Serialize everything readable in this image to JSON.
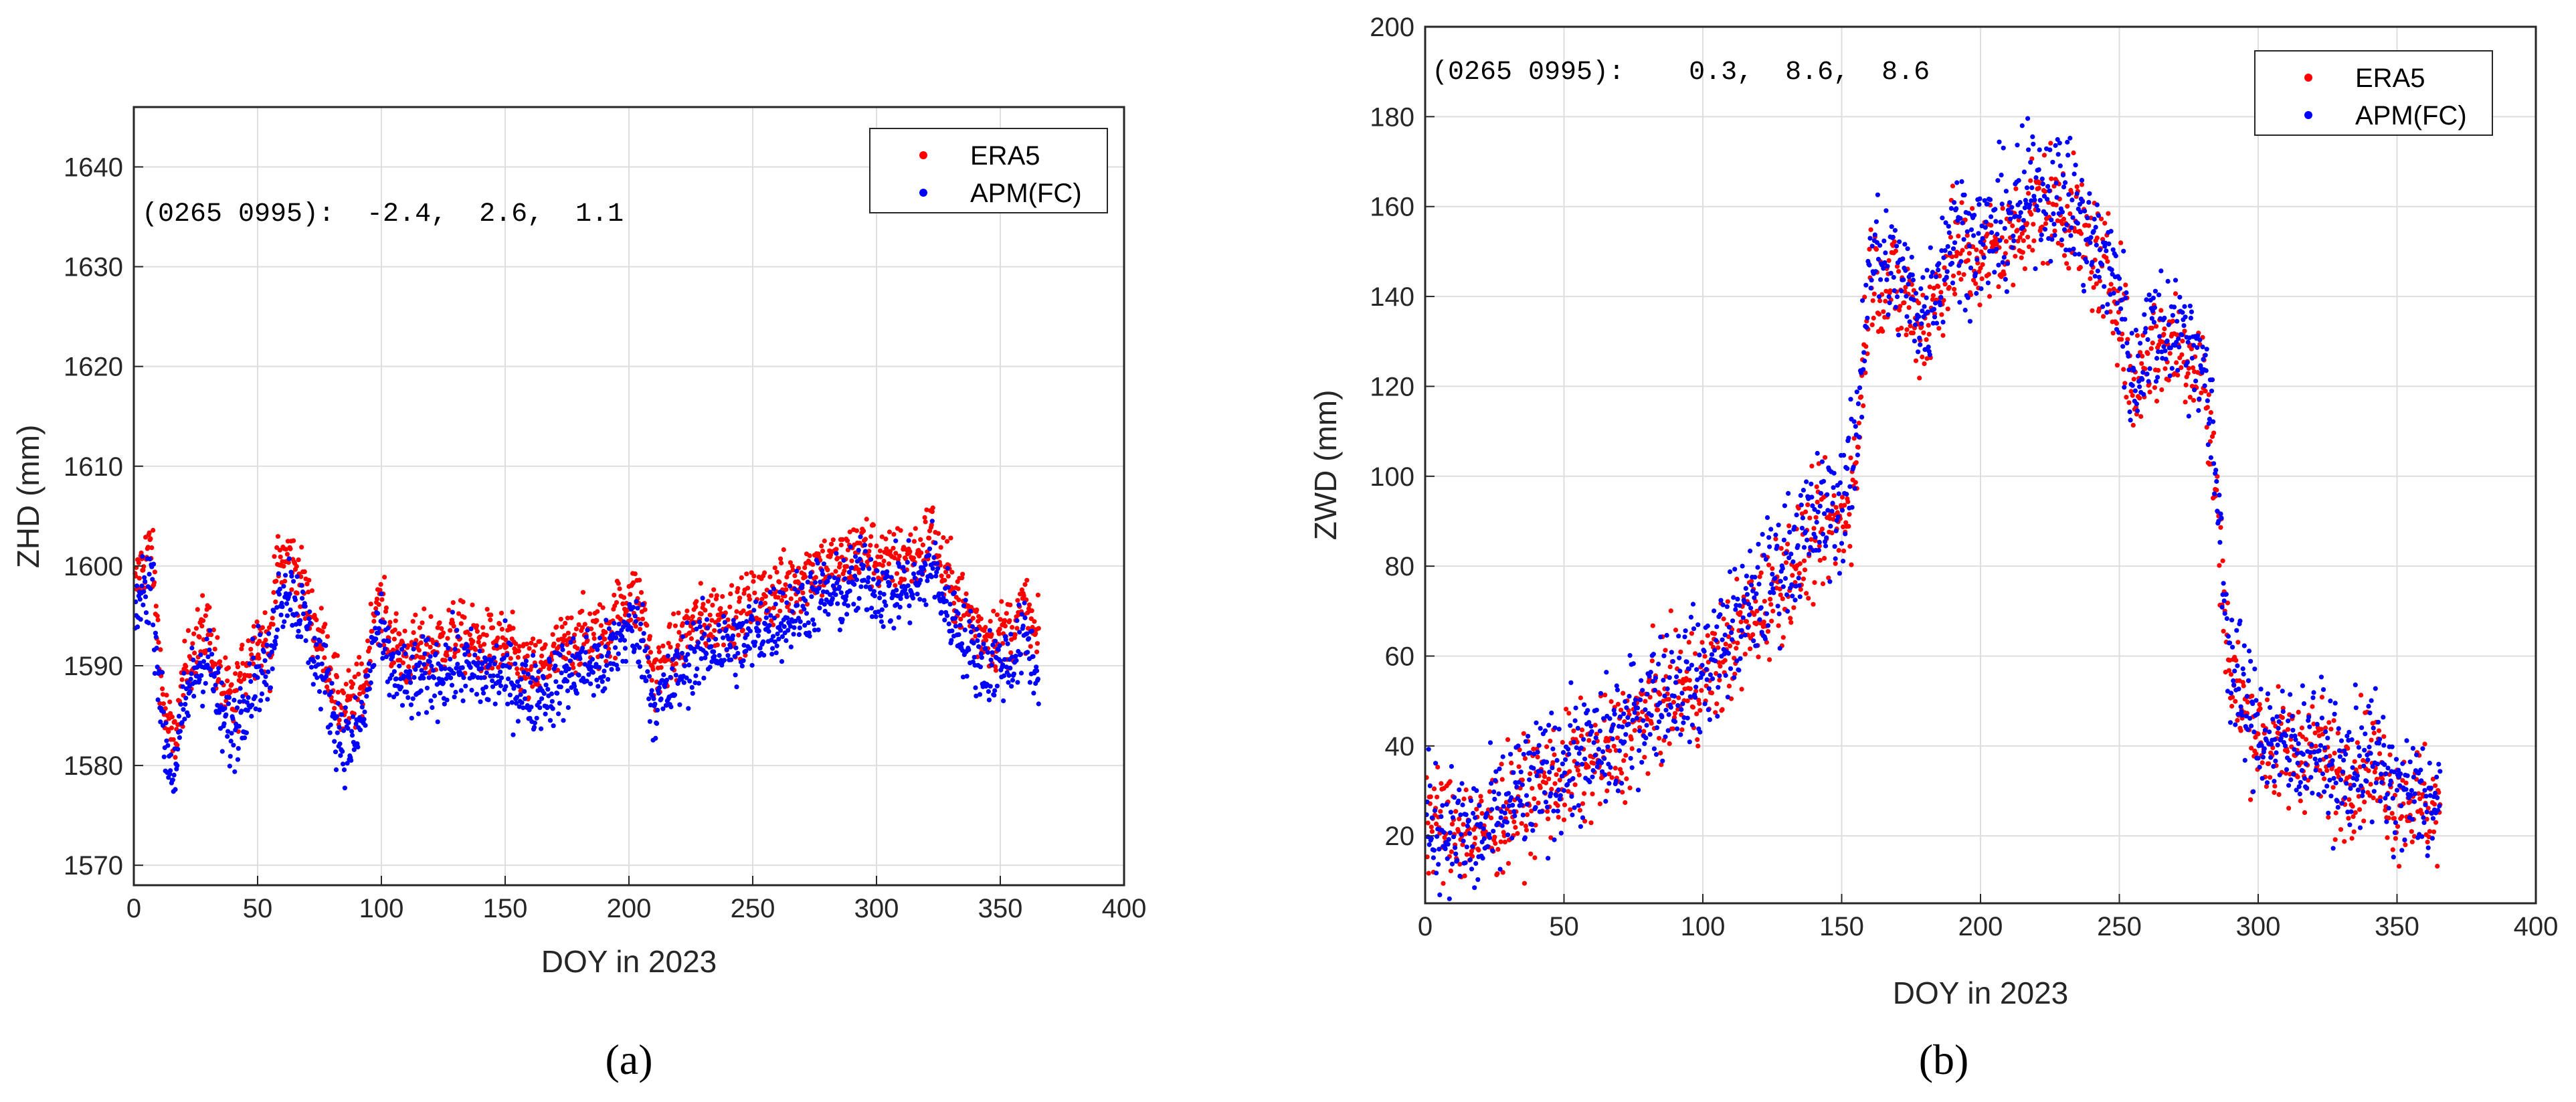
{
  "colors": {
    "era5": "#ff0000",
    "apm": "#0000ff",
    "grid": "#dedede",
    "axis": "#262626"
  },
  "chart_data": [
    {
      "id": "a",
      "type": "scatter",
      "caption": "(a)",
      "title": "",
      "xlabel": "DOY in 2023",
      "ylabel": "ZHD (mm)",
      "xlim": [
        0,
        400
      ],
      "ylim": [
        1568,
        1646
      ],
      "xticks": [
        0,
        50,
        100,
        150,
        200,
        250,
        300,
        350,
        400
      ],
      "yticks": [
        1570,
        1580,
        1590,
        1600,
        1610,
        1620,
        1630,
        1640
      ],
      "grid": true,
      "legend": {
        "position": "top-right",
        "entries": [
          "ERA5",
          "APM(FC)"
        ]
      },
      "annotation": "(0265 0995):  -2.4,  2.6,  1.1",
      "series": [
        {
          "name": "ERA5",
          "color": "#ff0000",
          "noise": 2.5,
          "trend": [
            [
              0,
              1597
            ],
            [
              3,
              1600
            ],
            [
              7,
              1602
            ],
            [
              12,
              1586
            ],
            [
              16,
              1582
            ],
            [
              20,
              1588
            ],
            [
              24,
              1592
            ],
            [
              30,
              1594
            ],
            [
              35,
              1588
            ],
            [
              40,
              1586
            ],
            [
              45,
              1590
            ],
            [
              50,
              1593
            ],
            [
              55,
              1592
            ],
            [
              58,
              1600
            ],
            [
              63,
              1601
            ],
            [
              68,
              1598
            ],
            [
              73,
              1594
            ],
            [
              78,
              1591
            ],
            [
              83,
              1586
            ],
            [
              88,
              1586
            ],
            [
              93,
              1588
            ],
            [
              98,
              1597
            ],
            [
              103,
              1593
            ],
            [
              110,
              1591
            ],
            [
              120,
              1592
            ],
            [
              130,
              1593
            ],
            [
              140,
              1592
            ],
            [
              150,
              1592
            ],
            [
              160,
              1589
            ],
            [
              170,
              1591
            ],
            [
              180,
              1593
            ],
            [
              190,
              1593
            ],
            [
              200,
              1597
            ],
            [
              205,
              1596
            ],
            [
              210,
              1589
            ],
            [
              215,
              1590
            ],
            [
              225,
              1594
            ],
            [
              235,
              1595
            ],
            [
              245,
              1595
            ],
            [
              255,
              1597
            ],
            [
              265,
              1598
            ],
            [
              275,
              1600
            ],
            [
              285,
              1600
            ],
            [
              295,
              1602
            ],
            [
              305,
              1600
            ],
            [
              312,
              1601
            ],
            [
              318,
              1601
            ],
            [
              322,
              1604
            ],
            [
              326,
              1600
            ],
            [
              333,
              1597
            ],
            [
              340,
              1594
            ],
            [
              345,
              1593
            ],
            [
              350,
              1593
            ],
            [
              356,
              1594
            ],
            [
              360,
              1596
            ],
            [
              365,
              1592
            ]
          ]
        },
        {
          "name": "APM(FC)",
          "color": "#0000ff",
          "noise": 2.8,
          "trend": [
            [
              0,
              1595
            ],
            [
              3,
              1597
            ],
            [
              7,
              1599
            ],
            [
              12,
              1583
            ],
            [
              16,
              1579
            ],
            [
              20,
              1585
            ],
            [
              24,
              1589
            ],
            [
              30,
              1591
            ],
            [
              35,
              1585
            ],
            [
              40,
              1583
            ],
            [
              45,
              1587
            ],
            [
              50,
              1590
            ],
            [
              55,
              1589
            ],
            [
              58,
              1597
            ],
            [
              63,
              1598
            ],
            [
              68,
              1595
            ],
            [
              73,
              1591
            ],
            [
              78,
              1588
            ],
            [
              83,
              1583
            ],
            [
              88,
              1582
            ],
            [
              93,
              1585
            ],
            [
              98,
              1594
            ],
            [
              103,
              1590
            ],
            [
              110,
              1588
            ],
            [
              120,
              1589
            ],
            [
              130,
              1590
            ],
            [
              140,
              1589
            ],
            [
              150,
              1589
            ],
            [
              160,
              1587
            ],
            [
              170,
              1588
            ],
            [
              180,
              1590
            ],
            [
              190,
              1590
            ],
            [
              200,
              1594
            ],
            [
              205,
              1593
            ],
            [
              210,
              1586
            ],
            [
              215,
              1587
            ],
            [
              225,
              1591
            ],
            [
              235,
              1592
            ],
            [
              245,
              1592
            ],
            [
              255,
              1594
            ],
            [
              265,
              1595
            ],
            [
              275,
              1597
            ],
            [
              285,
              1597
            ],
            [
              295,
              1599
            ],
            [
              305,
              1597
            ],
            [
              312,
              1598
            ],
            [
              318,
              1598
            ],
            [
              322,
              1601
            ],
            [
              326,
              1597
            ],
            [
              333,
              1594
            ],
            [
              340,
              1591
            ],
            [
              345,
              1590
            ],
            [
              350,
              1590
            ],
            [
              356,
              1591
            ],
            [
              360,
              1593
            ],
            [
              365,
              1589
            ]
          ]
        }
      ]
    },
    {
      "id": "b",
      "type": "scatter",
      "caption": "(b)",
      "title": "",
      "xlabel": "DOY in 2023",
      "ylabel": "ZWD (mm)",
      "xlim": [
        0,
        400
      ],
      "ylim": [
        5,
        200
      ],
      "xticks": [
        0,
        50,
        100,
        150,
        200,
        250,
        300,
        350,
        400
      ],
      "yticks": [
        20,
        40,
        60,
        80,
        100,
        120,
        140,
        160,
        180,
        200
      ],
      "grid": true,
      "legend": {
        "position": "top-right",
        "entries": [
          "ERA5",
          "APM(FC)"
        ]
      },
      "annotation": "(0265 0995):    0.3,  8.6,  8.6",
      "series": [
        {
          "name": "ERA5",
          "color": "#ff0000",
          "noise": 9,
          "trend": [
            [
              0,
              24
            ],
            [
              10,
              22
            ],
            [
              20,
              20
            ],
            [
              30,
              26
            ],
            [
              40,
              30
            ],
            [
              50,
              34
            ],
            [
              60,
              36
            ],
            [
              70,
              40
            ],
            [
              80,
              48
            ],
            [
              90,
              52
            ],
            [
              100,
              54
            ],
            [
              110,
              62
            ],
            [
              120,
              70
            ],
            [
              130,
              78
            ],
            [
              140,
              86
            ],
            [
              150,
              90
            ],
            [
              155,
              100
            ],
            [
              160,
              145
            ],
            [
              170,
              142
            ],
            [
              180,
              132
            ],
            [
              190,
              150
            ],
            [
              200,
              148
            ],
            [
              210,
              152
            ],
            [
              220,
              160
            ],
            [
              230,
              160
            ],
            [
              240,
              150
            ],
            [
              250,
              140
            ],
            [
              255,
              118
            ],
            [
              260,
              128
            ],
            [
              270,
              130
            ],
            [
              280,
              124
            ],
            [
              285,
              95
            ],
            [
              290,
              55
            ],
            [
              295,
              48
            ],
            [
              300,
              42
            ],
            [
              310,
              38
            ],
            [
              320,
              40
            ],
            [
              330,
              32
            ],
            [
              340,
              38
            ],
            [
              350,
              28
            ],
            [
              360,
              28
            ],
            [
              365,
              25
            ]
          ]
        },
        {
          "name": "APM(FC)",
          "color": "#0000ff",
          "noise": 10,
          "trend": [
            [
              0,
              23
            ],
            [
              10,
              21
            ],
            [
              20,
              19
            ],
            [
              30,
              27
            ],
            [
              40,
              31
            ],
            [
              50,
              36
            ],
            [
              60,
              38
            ],
            [
              70,
              42
            ],
            [
              80,
              50
            ],
            [
              90,
              54
            ],
            [
              100,
              56
            ],
            [
              110,
              65
            ],
            [
              120,
              73
            ],
            [
              130,
              82
            ],
            [
              140,
              90
            ],
            [
              150,
              94
            ],
            [
              155,
              105
            ],
            [
              160,
              150
            ],
            [
              170,
              145
            ],
            [
              180,
              136
            ],
            [
              190,
              155
            ],
            [
              200,
              152
            ],
            [
              210,
              157
            ],
            [
              220,
              165
            ],
            [
              230,
              163
            ],
            [
              240,
              152
            ],
            [
              250,
              142
            ],
            [
              255,
              120
            ],
            [
              260,
              132
            ],
            [
              270,
              134
            ],
            [
              280,
              127
            ],
            [
              285,
              98
            ],
            [
              290,
              58
            ],
            [
              295,
              50
            ],
            [
              300,
              44
            ],
            [
              310,
              39
            ],
            [
              320,
              41
            ],
            [
              330,
              33
            ],
            [
              340,
              39
            ],
            [
              350,
              29
            ],
            [
              360,
              29
            ],
            [
              365,
              26
            ]
          ]
        }
      ]
    }
  ]
}
